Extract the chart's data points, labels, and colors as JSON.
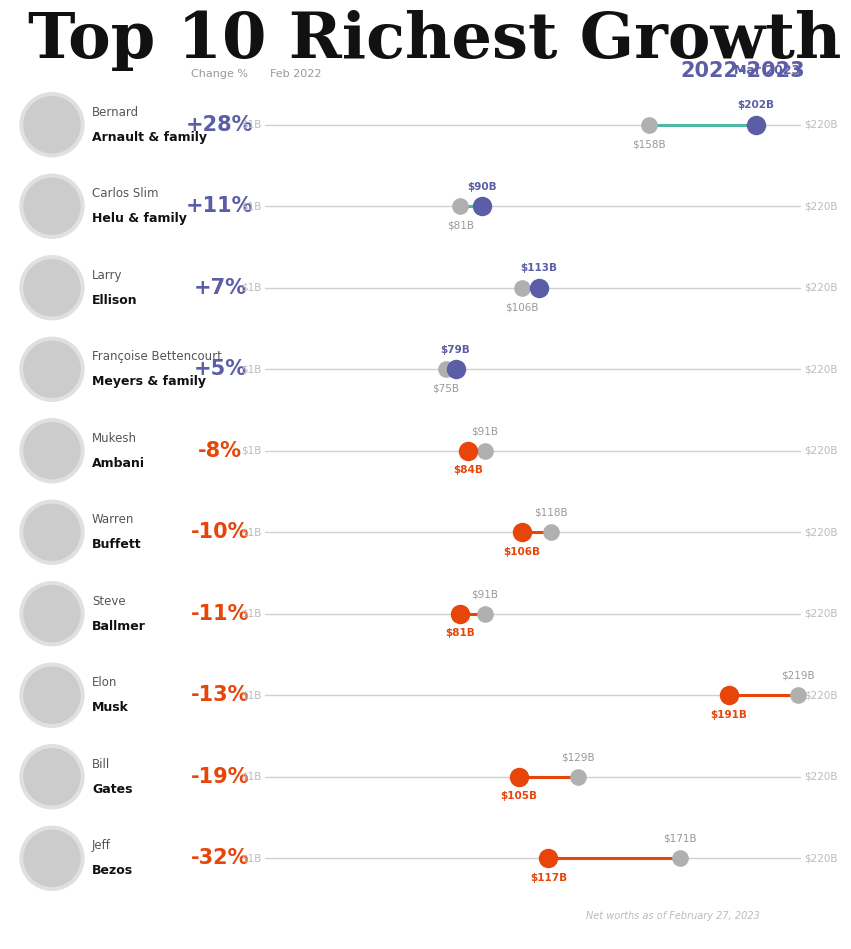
{
  "title": "Top 10 Richest Growth",
  "title_year": "2022-2023",
  "col_header_change": "Change %",
  "col_header_feb": "Feb 2022",
  "col_header_mar": "Mar 2023",
  "footnote": "Net worths as of February 27, 2023",
  "xmin": 1,
  "xmax": 220,
  "people": [
    {
      "name1": "Bernard",
      "name2": "Arnault & family",
      "change": "+28%",
      "feb2022": 158,
      "mar2023": 202,
      "positive": true
    },
    {
      "name1": "Carlos Slim",
      "name2": "Helu & family",
      "change": "+11%",
      "feb2022": 81,
      "mar2023": 90,
      "positive": true
    },
    {
      "name1": "Larry",
      "name2": "Ellison",
      "change": "+7%",
      "feb2022": 106,
      "mar2023": 113,
      "positive": true
    },
    {
      "name1": "Françoise Bettencourt",
      "name2": "Meyers & family",
      "change": "+5%",
      "feb2022": 75,
      "mar2023": 79,
      "positive": true
    },
    {
      "name1": "Mukesh",
      "name2": "Ambani",
      "change": "-8%",
      "feb2022": 91,
      "mar2023": 84,
      "positive": false
    },
    {
      "name1": "Warren",
      "name2": "Buffett",
      "change": "-10%",
      "feb2022": 118,
      "mar2023": 106,
      "positive": false
    },
    {
      "name1": "Steve",
      "name2": "Ballmer",
      "change": "-11%",
      "feb2022": 91,
      "mar2023": 81,
      "positive": false
    },
    {
      "name1": "Elon",
      "name2": "Musk",
      "change": "-13%",
      "feb2022": 219,
      "mar2023": 191,
      "positive": false
    },
    {
      "name1": "Bill",
      "name2": "Gates",
      "change": "-19%",
      "feb2022": 129,
      "mar2023": 105,
      "positive": false
    },
    {
      "name1": "Jeff",
      "name2": "Bezos",
      "change": "-32%",
      "feb2022": 171,
      "mar2023": 117,
      "positive": false
    }
  ],
  "positive_dot_color": "#5b5ea6",
  "positive_line_color": "#4db8a4",
  "negative_dot_color": "#e8450a",
  "negative_line_color": "#e8450a",
  "neutral_dot_color": "#b0b0b0",
  "axis_line_color": "#d0d0d0",
  "change_positive_color": "#5b5ea6",
  "change_negative_color": "#e8450a",
  "bg_color": "#ffffff",
  "title_color": "#111111",
  "year_color": "#5b5ea6",
  "name1_color": "#555555",
  "name2_color": "#111111",
  "label_gray_color": "#999999",
  "dollar_label_color": "#bbbbbb"
}
